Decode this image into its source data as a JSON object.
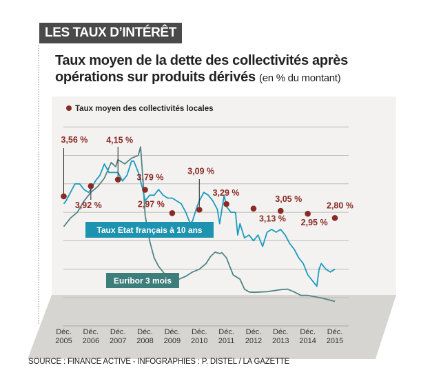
{
  "header": {
    "tag": "LES TAUX D’INTÉRÊT",
    "title_line1": "Taux moyen de la dette des collectivités après",
    "title_line2": "opérations sur produits dérivés",
    "title_unit": "(en % du montant)"
  },
  "source": "SOURCE : FINANCE ACTIVE - INFOGRAPHIES : P. DISTEL / LA GAZETTE",
  "chart_data": {
    "type": "line",
    "ylim": [
      0,
      6
    ],
    "grid": true,
    "legend": "top-left",
    "colors": {
      "dots": "#8b2a25",
      "oat": "#1a9bbf",
      "euribor": "#4f8585",
      "oat_box": "#1e93b0",
      "euribor_box": "#3d7d7b"
    },
    "x_ticks": [
      {
        "l1": "Déc.",
        "l2": "2005"
      },
      {
        "l1": "Déc.",
        "l2": "2006"
      },
      {
        "l1": "Déc.",
        "l2": "2007"
      },
      {
        "l1": "Déc.",
        "l2": "2008"
      },
      {
        "l1": "Déc.",
        "l2": "2009"
      },
      {
        "l1": "Déc.",
        "l2": "2010"
      },
      {
        "l1": "Déc.",
        "l2": "2011"
      },
      {
        "l1": "Déc.",
        "l2": "2012"
      },
      {
        "l1": "Déc.",
        "l2": "2013"
      },
      {
        "l1": "Déc.",
        "l2": "2014"
      },
      {
        "l1": "Déc.",
        "l2": "2015"
      }
    ],
    "dots": {
      "name": "Taux moyen des collectivités locales",
      "points": [
        {
          "x": "2005-12",
          "y": 3.56,
          "label": "3,56 %"
        },
        {
          "x": "2006-12",
          "y": 3.92,
          "label": "3,92 %"
        },
        {
          "x": "2007-12",
          "y": 4.15,
          "label": "4,15 %"
        },
        {
          "x": "2008-12",
          "y": 3.79,
          "label": "3,79 %"
        },
        {
          "x": "2009-12",
          "y": 2.97,
          "label": "2,97 %"
        },
        {
          "x": "2010-12",
          "y": 3.09,
          "label": "3,09 %"
        },
        {
          "x": "2011-12",
          "y": 3.29,
          "label": "3,29 %"
        },
        {
          "x": "2012-12",
          "y": 3.13,
          "label": "3,13 %"
        },
        {
          "x": "2013-12",
          "y": 3.05,
          "label": "3,05 %"
        },
        {
          "x": "2014-12",
          "y": 2.95,
          "label": "2,95 %"
        },
        {
          "x": "2015-12",
          "y": 2.8,
          "label": "2,80 %"
        }
      ]
    },
    "series": [
      {
        "name": "Taux Etat français à 10 ans",
        "points": [
          [
            "2005-12",
            3.3
          ],
          [
            "2006-01",
            3.4
          ],
          [
            "2006-03",
            3.7
          ],
          [
            "2006-05",
            4.0
          ],
          [
            "2006-07",
            4.0
          ],
          [
            "2006-09",
            3.8
          ],
          [
            "2006-11",
            3.7
          ],
          [
            "2006-12",
            3.8
          ],
          [
            "2007-02",
            4.1
          ],
          [
            "2007-04",
            4.3
          ],
          [
            "2007-06",
            4.7
          ],
          [
            "2007-08",
            4.4
          ],
          [
            "2007-10",
            4.4
          ],
          [
            "2007-12",
            4.4
          ],
          [
            "2008-02",
            4.1
          ],
          [
            "2008-04",
            4.3
          ],
          [
            "2008-06",
            4.8
          ],
          [
            "2008-07",
            4.8
          ],
          [
            "2008-09",
            4.4
          ],
          [
            "2008-11",
            3.8
          ],
          [
            "2008-12",
            3.4
          ],
          [
            "2009-02",
            3.6
          ],
          [
            "2009-04",
            3.6
          ],
          [
            "2009-06",
            3.8
          ],
          [
            "2009-08",
            3.6
          ],
          [
            "2009-10",
            3.5
          ],
          [
            "2009-12",
            3.5
          ],
          [
            "2010-02",
            3.4
          ],
          [
            "2010-04",
            3.3
          ],
          [
            "2010-06",
            3.0
          ],
          [
            "2010-08",
            2.6
          ],
          [
            "2010-09",
            2.7
          ],
          [
            "2010-11",
            3.2
          ],
          [
            "2010-12",
            3.4
          ],
          [
            "2011-02",
            3.7
          ],
          [
            "2011-04",
            3.6
          ],
          [
            "2011-06",
            3.4
          ],
          [
            "2011-08",
            3.1
          ],
          [
            "2011-09",
            2.6
          ],
          [
            "2011-10",
            3.1
          ],
          [
            "2011-11",
            3.6
          ],
          [
            "2011-12",
            3.2
          ],
          [
            "2012-02",
            3.0
          ],
          [
            "2012-04",
            3.0
          ],
          [
            "2012-05",
            2.2
          ],
          [
            "2012-06",
            2.6
          ],
          [
            "2012-08",
            2.1
          ],
          [
            "2012-10",
            2.2
          ],
          [
            "2012-12",
            2.0
          ],
          [
            "2013-02",
            2.2
          ],
          [
            "2013-04",
            1.8
          ],
          [
            "2013-06",
            2.3
          ],
          [
            "2013-08",
            2.4
          ],
          [
            "2013-10",
            2.3
          ],
          [
            "2013-12",
            2.4
          ],
          [
            "2014-02",
            2.2
          ],
          [
            "2014-04",
            1.9
          ],
          [
            "2014-06",
            1.7
          ],
          [
            "2014-08",
            1.4
          ],
          [
            "2014-10",
            1.2
          ],
          [
            "2014-12",
            0.8
          ],
          [
            "2015-02",
            0.6
          ],
          [
            "2015-04",
            0.4
          ],
          [
            "2015-05",
            1.0
          ],
          [
            "2015-06",
            1.2
          ],
          [
            "2015-08",
            1.0
          ],
          [
            "2015-10",
            0.9
          ],
          [
            "2015-12",
            1.0
          ]
        ]
      },
      {
        "name": "Euribor 3 mois",
        "points": [
          [
            "2005-12",
            2.5
          ],
          [
            "2006-03",
            2.8
          ],
          [
            "2006-06",
            3.0
          ],
          [
            "2006-09",
            3.4
          ],
          [
            "2006-12",
            3.7
          ],
          [
            "2007-03",
            3.9
          ],
          [
            "2007-06",
            4.2
          ],
          [
            "2007-09",
            4.75
          ],
          [
            "2007-11",
            4.6
          ],
          [
            "2007-12",
            4.85
          ],
          [
            "2008-03",
            4.7
          ],
          [
            "2008-06",
            4.9
          ],
          [
            "2008-09",
            5.0
          ],
          [
            "2008-10",
            5.3
          ],
          [
            "2008-11",
            4.2
          ],
          [
            "2008-12",
            2.9
          ],
          [
            "2009-02",
            2.0
          ],
          [
            "2009-04",
            1.4
          ],
          [
            "2009-06",
            1.1
          ],
          [
            "2009-09",
            0.8
          ],
          [
            "2009-12",
            0.7
          ],
          [
            "2010-03",
            0.65
          ],
          [
            "2010-06",
            0.75
          ],
          [
            "2010-09",
            0.9
          ],
          [
            "2010-12",
            1.0
          ],
          [
            "2011-03",
            1.2
          ],
          [
            "2011-05",
            1.45
          ],
          [
            "2011-07",
            1.6
          ],
          [
            "2011-09",
            1.55
          ],
          [
            "2011-10",
            1.58
          ],
          [
            "2011-12",
            1.4
          ],
          [
            "2012-03",
            0.8
          ],
          [
            "2012-06",
            0.65
          ],
          [
            "2012-08",
            0.3
          ],
          [
            "2012-10",
            0.2
          ],
          [
            "2012-12",
            0.19
          ],
          [
            "2013-06",
            0.21
          ],
          [
            "2013-12",
            0.28
          ],
          [
            "2014-03",
            0.3
          ],
          [
            "2014-06",
            0.2
          ],
          [
            "2014-09",
            0.08
          ],
          [
            "2014-12",
            0.08
          ],
          [
            "2015-06",
            -0.01
          ],
          [
            "2015-12",
            -0.13
          ]
        ]
      }
    ]
  }
}
